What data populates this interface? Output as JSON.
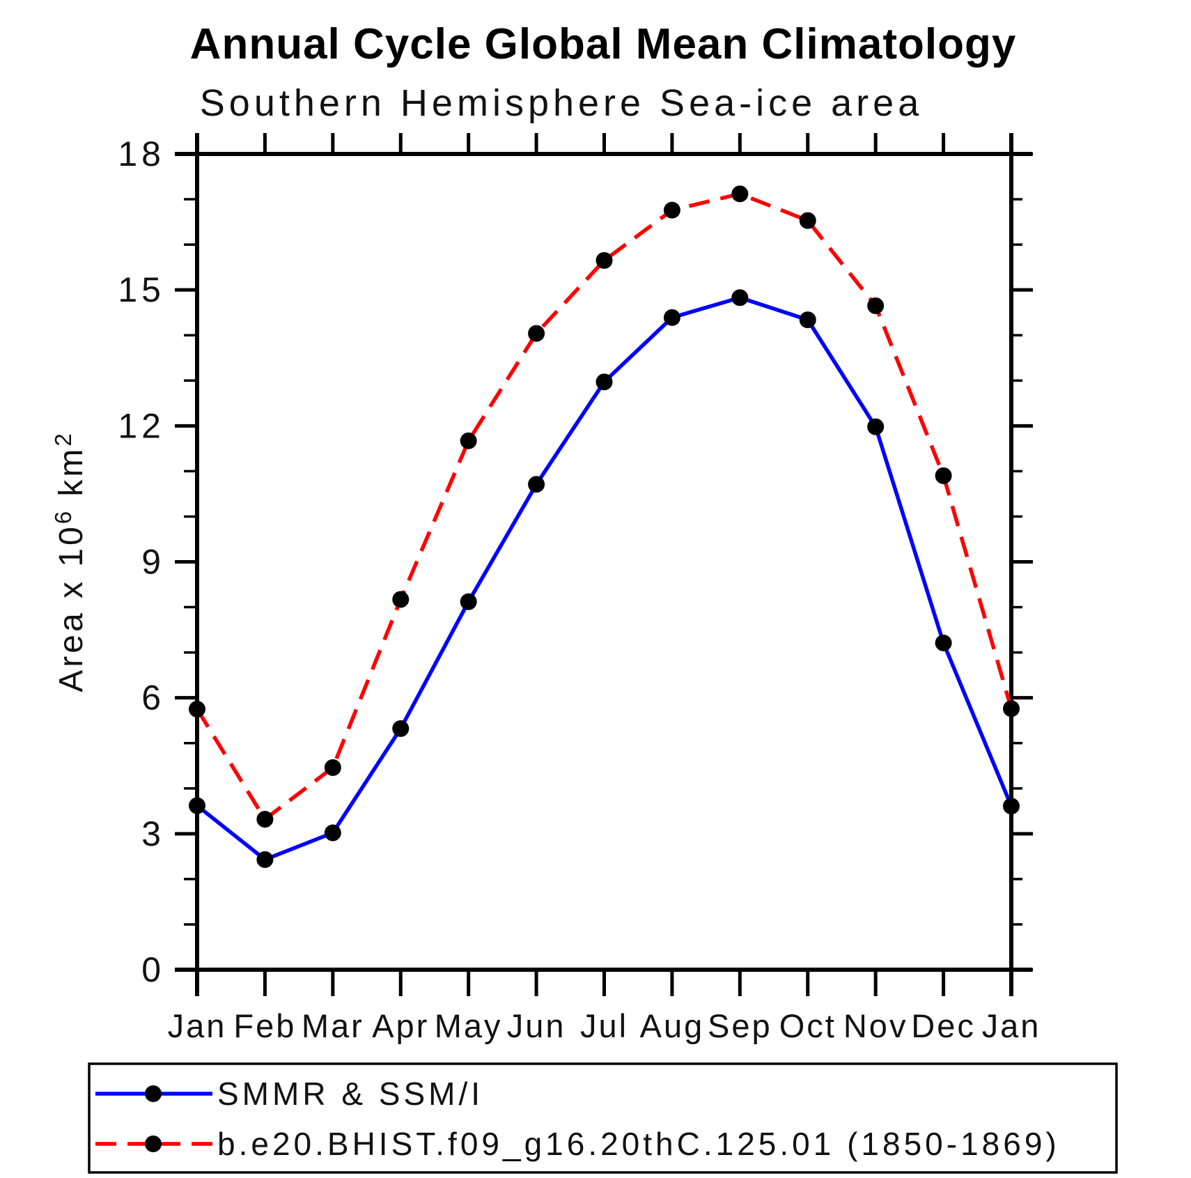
{
  "page": {
    "background_color": "#ffffff"
  },
  "chart_data": {
    "type": "line",
    "title": "Annual Cycle Global Mean Climatology",
    "subtitle": "Southern Hemisphere Sea-ice area",
    "xlabel": "",
    "ylabel": "Area x 10^6 km^2",
    "ylabel_parts": {
      "text1": "Area x 10",
      "sup1": "6",
      "text2": " km",
      "sup2": "2"
    },
    "ylim": [
      0,
      18
    ],
    "y_major_ticks": [
      0,
      3,
      6,
      9,
      12,
      15,
      18
    ],
    "y_minor_tick_step": 1,
    "grid": "off",
    "legend_position": "bottom-left-box",
    "categories": [
      "Jan",
      "Feb",
      "Mar",
      "Apr",
      "May",
      "Jun",
      "Jul",
      "Aug",
      "Sep",
      "Oct",
      "Nov",
      "Dec",
      "Jan"
    ],
    "x_tick_labels": [
      "Jan",
      "Feb",
      "Mar",
      "Apr",
      "May",
      "Jun",
      "Jul",
      "Aug",
      "Sep",
      "Oct",
      "Nov",
      "Dec",
      "Jan"
    ],
    "series": [
      {
        "name": "SMMR & SSM/I",
        "color": "#0000ff",
        "line_style": "solid",
        "marker": "filled-circle",
        "marker_color": "#000000",
        "values": [
          3.62,
          2.43,
          3.02,
          5.32,
          8.12,
          10.71,
          12.97,
          14.39,
          14.83,
          14.34,
          11.98,
          7.21,
          3.61
        ]
      },
      {
        "name": "b.e20.BHIST.f09_g16.20thC.125.01 (1850-1869)",
        "color": "#ff0000",
        "line_style": "dashed",
        "marker": "filled-circle",
        "marker_color": "#000000",
        "values": [
          5.75,
          3.32,
          4.46,
          8.17,
          11.67,
          14.04,
          15.65,
          16.76,
          17.12,
          16.53,
          14.65,
          10.9,
          5.76
        ]
      }
    ],
    "axis_color": "#000000"
  }
}
